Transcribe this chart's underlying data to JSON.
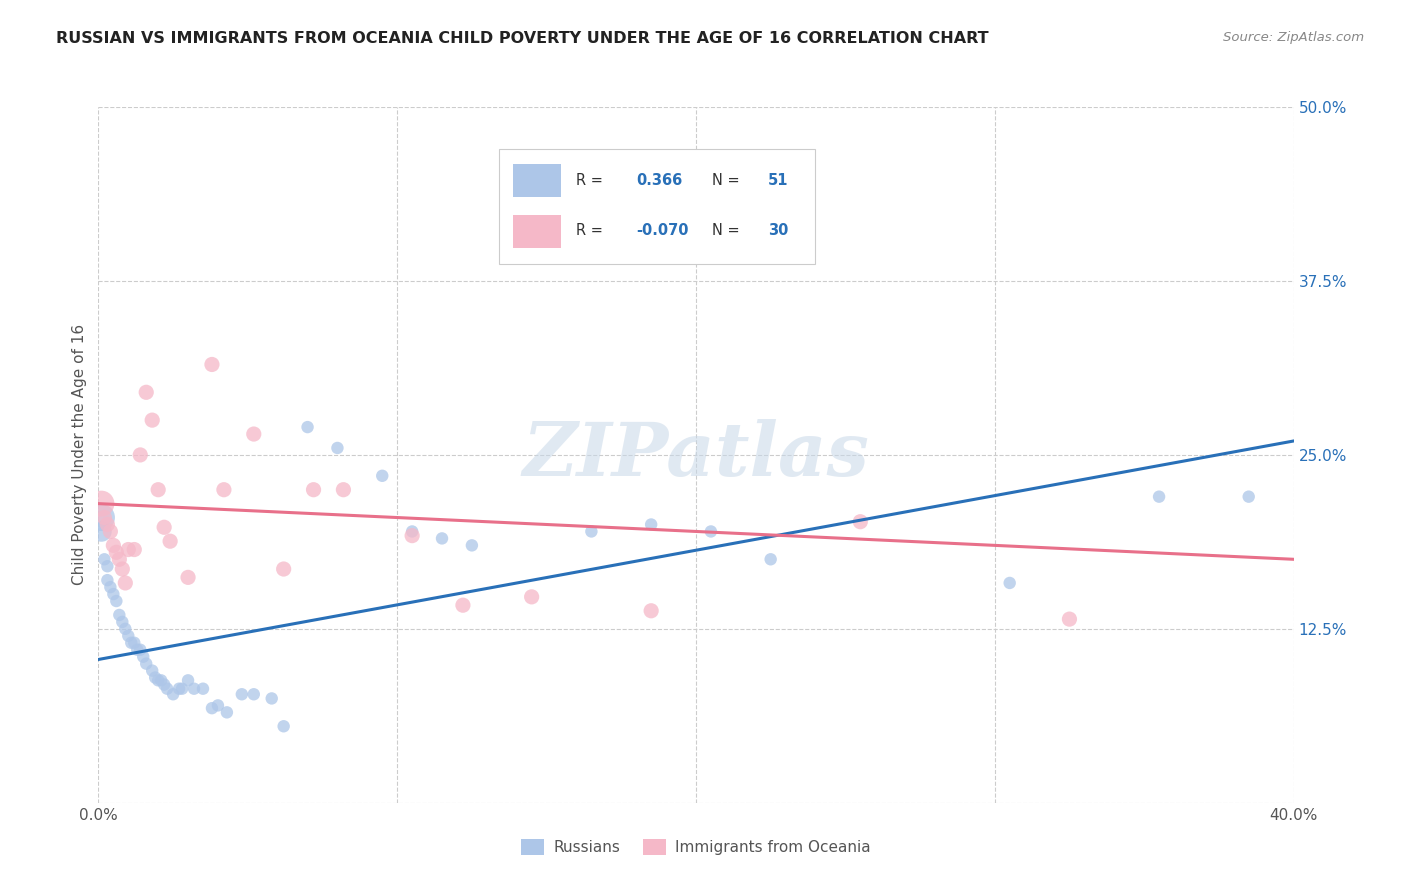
{
  "title": "RUSSIAN VS IMMIGRANTS FROM OCEANIA CHILD POVERTY UNDER THE AGE OF 16 CORRELATION CHART",
  "source": "Source: ZipAtlas.com",
  "ylabel": "Child Poverty Under the Age of 16",
  "xlim": [
    0.0,
    0.4
  ],
  "ylim": [
    0.0,
    0.5
  ],
  "ytick_positions": [
    0.0,
    0.125,
    0.25,
    0.375,
    0.5
  ],
  "ytick_labels": [
    "",
    "12.5%",
    "25.0%",
    "37.5%",
    "50.0%"
  ],
  "xtick_positions": [
    0.0,
    0.1,
    0.2,
    0.3,
    0.4
  ],
  "xtick_labels": [
    "0.0%",
    "",
    "",
    "",
    "40.0%"
  ],
  "russian_R": 0.366,
  "russian_N": 51,
  "oceania_R": -0.07,
  "oceania_N": 30,
  "russian_color": "#adc6e8",
  "oceania_color": "#f5b8c8",
  "russian_line_color": "#2970b8",
  "oceania_line_color": "#e8708a",
  "watermark": "ZIPatlas",
  "russians_x": [
    0.001,
    0.001,
    0.002,
    0.003,
    0.003,
    0.004,
    0.005,
    0.006,
    0.007,
    0.008,
    0.009,
    0.01,
    0.011,
    0.012,
    0.013,
    0.014,
    0.015,
    0.016,
    0.018,
    0.019,
    0.02,
    0.021,
    0.022,
    0.023,
    0.025,
    0.027,
    0.028,
    0.03,
    0.032,
    0.035,
    0.038,
    0.04,
    0.043,
    0.048,
    0.052,
    0.058,
    0.062,
    0.07,
    0.08,
    0.095,
    0.105,
    0.115,
    0.125,
    0.145,
    0.165,
    0.185,
    0.205,
    0.225,
    0.305,
    0.355,
    0.385
  ],
  "russians_y": [
    0.205,
    0.195,
    0.175,
    0.17,
    0.16,
    0.155,
    0.15,
    0.145,
    0.135,
    0.13,
    0.125,
    0.12,
    0.115,
    0.115,
    0.11,
    0.11,
    0.105,
    0.1,
    0.095,
    0.09,
    0.088,
    0.088,
    0.085,
    0.082,
    0.078,
    0.082,
    0.082,
    0.088,
    0.082,
    0.082,
    0.068,
    0.07,
    0.065,
    0.078,
    0.078,
    0.075,
    0.055,
    0.27,
    0.255,
    0.235,
    0.195,
    0.19,
    0.185,
    0.415,
    0.195,
    0.2,
    0.195,
    0.175,
    0.158,
    0.22,
    0.22
  ],
  "russians_size": [
    80,
    80,
    80,
    80,
    80,
    80,
    80,
    80,
    80,
    80,
    80,
    80,
    80,
    80,
    80,
    80,
    80,
    80,
    80,
    80,
    80,
    80,
    80,
    80,
    80,
    80,
    80,
    80,
    80,
    80,
    80,
    80,
    80,
    80,
    80,
    80,
    80,
    80,
    80,
    80,
    80,
    80,
    80,
    80,
    80,
    80,
    80,
    80,
    80,
    80,
    80
  ],
  "oceania_x": [
    0.001,
    0.002,
    0.003,
    0.004,
    0.005,
    0.006,
    0.007,
    0.008,
    0.009,
    0.01,
    0.012,
    0.014,
    0.016,
    0.018,
    0.02,
    0.022,
    0.024,
    0.03,
    0.038,
    0.042,
    0.052,
    0.062,
    0.072,
    0.082,
    0.105,
    0.122,
    0.145,
    0.185,
    0.255,
    0.325
  ],
  "oceania_y": [
    0.215,
    0.205,
    0.2,
    0.195,
    0.185,
    0.18,
    0.175,
    0.168,
    0.158,
    0.182,
    0.182,
    0.25,
    0.295,
    0.275,
    0.225,
    0.198,
    0.188,
    0.162,
    0.315,
    0.225,
    0.265,
    0.168,
    0.225,
    0.225,
    0.192,
    0.142,
    0.148,
    0.138,
    0.202,
    0.132
  ],
  "oceania_size": [
    350,
    120,
    120,
    120,
    120,
    120,
    120,
    120,
    120,
    120,
    120,
    120,
    120,
    120,
    120,
    120,
    120,
    120,
    120,
    120,
    120,
    120,
    120,
    120,
    120,
    120,
    120,
    120,
    120,
    120
  ],
  "big_russian_indices": [
    0,
    1
  ],
  "russian_line_x0": 0.0,
  "russian_line_y0": 0.103,
  "russian_line_x1": 0.4,
  "russian_line_y1": 0.26,
  "oceania_line_x0": 0.0,
  "oceania_line_y0": 0.215,
  "oceania_line_x1": 0.4,
  "oceania_line_y1": 0.175
}
